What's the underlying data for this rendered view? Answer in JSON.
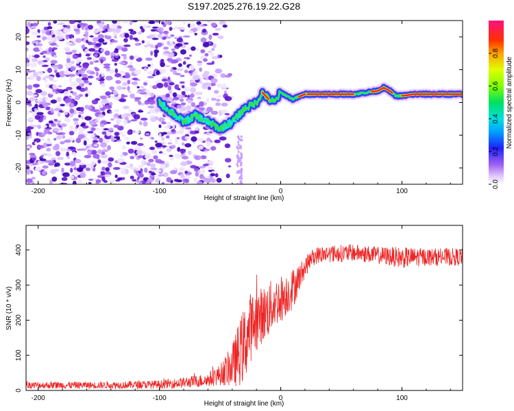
{
  "title": "S197.2025.276.19.22.G28",
  "colors": {
    "snr_line": "#ee2222",
    "spec_low": "#9b5cf0",
    "spec_dark": "#3a00b0",
    "track_core": "#ff2020"
  },
  "chart_data": [
    {
      "type": "heatmap",
      "name": "spectrogram",
      "xlabel": "Height of straight line (km)",
      "ylabel": "Frequency (Hz)",
      "xlim": [
        -210,
        150
      ],
      "ylim": [
        -25,
        25
      ],
      "x_ticks": [
        -200,
        -100,
        0,
        100
      ],
      "x_tick_labels": [
        "-200",
        "-100",
        "0",
        "100"
      ],
      "y_ticks": [
        -20,
        -10,
        0,
        10,
        20
      ],
      "y_tick_labels": [
        "-20",
        "-10",
        "0",
        "10",
        "20"
      ],
      "colorbar": {
        "label": "Normalized spectral amplitude",
        "range": [
          0,
          1
        ],
        "ticks": [
          0,
          0.2,
          0.4,
          0.6,
          0.8
        ],
        "tick_labels": [
          "0.0",
          "0.2",
          "0.4",
          "0.6",
          "0.8"
        ]
      },
      "dominant_frequency_track": {
        "x": [
          -100,
          -90,
          -80,
          -70,
          -60,
          -50,
          -40,
          -35,
          -30,
          -20,
          -15,
          -10,
          -5,
          0,
          5,
          10,
          20,
          30,
          40,
          50,
          60,
          70,
          80,
          85,
          90,
          95,
          100,
          110,
          120,
          130,
          140,
          150
        ],
        "freq": [
          0,
          -3,
          -6,
          -4,
          -6,
          -8,
          -6,
          -4,
          -2,
          0,
          3,
          1,
          0,
          3,
          2,
          1,
          2.5,
          2.5,
          2.5,
          2.5,
          2.5,
          3,
          3.5,
          4.5,
          3.5,
          2,
          2,
          2.5,
          2.5,
          2.5,
          2.5,
          2.5
        ]
      },
      "noise_region": {
        "x_range": [
          -210,
          -60
        ],
        "f_range": [
          -25,
          25
        ]
      }
    },
    {
      "type": "line",
      "name": "snr",
      "xlabel": "Height of straight line (km)",
      "ylabel": "SNR (10 * v/v)",
      "xlim": [
        -210,
        150
      ],
      "ylim": [
        0,
        470
      ],
      "x_ticks": [
        -200,
        -100,
        0,
        100
      ],
      "x_tick_labels": [
        "-200",
        "-100",
        "0",
        "100"
      ],
      "y_ticks": [
        0,
        100,
        200,
        300,
        400
      ],
      "y_tick_labels": [
        "0",
        "100",
        "200",
        "300",
        "400"
      ],
      "envelope": {
        "x": [
          -210,
          -150,
          -100,
          -80,
          -60,
          -50,
          -40,
          -35,
          -30,
          -25,
          -20,
          -15,
          -10,
          -5,
          0,
          5,
          10,
          15,
          20,
          25,
          30,
          40,
          50,
          60,
          80,
          100,
          120,
          150
        ],
        "mean": [
          15,
          15,
          17,
          22,
          30,
          45,
          70,
          100,
          130,
          180,
          200,
          215,
          230,
          250,
          260,
          275,
          290,
          320,
          350,
          375,
          385,
          390,
          390,
          392,
          385,
          378,
          380,
          380
        ],
        "spread": [
          10,
          10,
          12,
          15,
          20,
          30,
          60,
          90,
          110,
          100,
          90,
          80,
          80,
          70,
          70,
          60,
          60,
          40,
          30,
          25,
          25,
          25,
          25,
          25,
          25,
          30,
          25,
          25
        ]
      }
    }
  ]
}
